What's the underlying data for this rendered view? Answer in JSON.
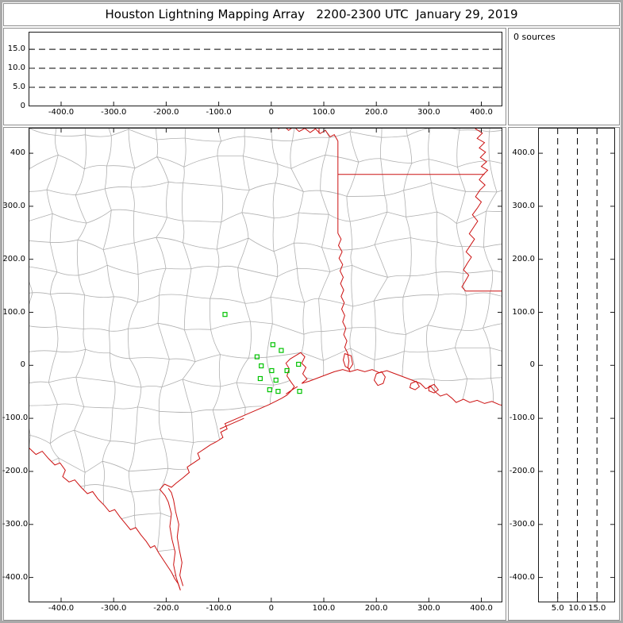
{
  "window": {
    "title": "Houston Lightning Mapping Array   2200-2300 UTC  January 29, 2019"
  },
  "sources_panel": {
    "label": "0 sources"
  },
  "colors": {
    "outer_border": "#a9a9a9",
    "panel_border": "#8f8f8f",
    "plot_frame": "#1a1a1a",
    "county_gray": "#b0b0b0",
    "state_border_red": "#cc1111",
    "station_green": "#00c300",
    "dash_black": "#000000"
  },
  "chart_data": [
    {
      "id": "alt-vs-ew",
      "type": "scatter",
      "title": "altitude vs east-west distance (km)",
      "sources": 0,
      "points": [],
      "xlim": [
        -462,
        440
      ],
      "alt_lim": [
        0,
        19.6
      ],
      "grid_style": "dashed",
      "gridlines_alt_km": [
        5,
        10,
        15
      ],
      "xticks": [
        {
          "v": -400,
          "label": "-400.0"
        },
        {
          "v": -300,
          "label": "-300.0"
        },
        {
          "v": -200,
          "label": "-200.0"
        },
        {
          "v": -100,
          "label": "-100.0"
        },
        {
          "v": 0,
          "label": "0"
        },
        {
          "v": 100,
          "label": "100.0"
        },
        {
          "v": 200,
          "label": "200.0"
        },
        {
          "v": 300,
          "label": "300.0"
        },
        {
          "v": 400,
          "label": "400.0"
        }
      ],
      "yticks": [
        {
          "v": 15,
          "label": "15.0"
        },
        {
          "v": 10,
          "label": "10.0"
        },
        {
          "v": 5,
          "label": "5.0"
        },
        {
          "v": 0,
          "label": "0"
        }
      ]
    },
    {
      "id": "plan-view",
      "type": "scatter",
      "title": "plan view map (km east-west vs km north-south)",
      "sources": 0,
      "points": [],
      "xlim": [
        -462,
        440
      ],
      "ylim": [
        -447,
        448
      ],
      "xticks": [
        {
          "v": -400,
          "label": "-400.0"
        },
        {
          "v": -300,
          "label": "-300.0"
        },
        {
          "v": -200,
          "label": "-200.0"
        },
        {
          "v": -100,
          "label": "-100.0"
        },
        {
          "v": 0,
          "label": "0"
        },
        {
          "v": 100,
          "label": "100.0"
        },
        {
          "v": 200,
          "label": "200.0"
        },
        {
          "v": 300,
          "label": "300.0"
        },
        {
          "v": 400,
          "label": "400.0"
        }
      ],
      "yticks": [
        {
          "v": 400,
          "label": "400"
        },
        {
          "v": 300,
          "label": "300.0"
        },
        {
          "v": 200,
          "label": "200.0"
        },
        {
          "v": 100,
          "label": "100.0"
        },
        {
          "v": 0,
          "label": "0"
        },
        {
          "v": -100,
          "label": "-100.0"
        },
        {
          "v": -200,
          "label": "-200.0"
        },
        {
          "v": -300,
          "label": "-300.0"
        },
        {
          "v": -400,
          "label": "-400.0"
        }
      ],
      "stations_km": [
        [
          -88,
          96
        ],
        [
          3,
          39
        ],
        [
          19,
          28
        ],
        [
          -27,
          16
        ],
        [
          -19,
          -1
        ],
        [
          1,
          -10
        ],
        [
          30,
          -10
        ],
        [
          -21,
          -25
        ],
        [
          9,
          -28
        ],
        [
          -3,
          -46
        ],
        [
          13,
          -49
        ],
        [
          52,
          2
        ],
        [
          54,
          -49
        ]
      ],
      "county_grid": {
        "seed": 7,
        "step_km": 52,
        "jitter_km": 14,
        "x0": -520,
        "y0": -500,
        "cols": 20,
        "rows": 20
      },
      "borders_km": {
        "red_river": [
          [
            5,
            455
          ],
          [
            14,
            446
          ],
          [
            24,
            451
          ],
          [
            33,
            443
          ],
          [
            43,
            450
          ],
          [
            53,
            441
          ],
          [
            64,
            447
          ],
          [
            74,
            439
          ],
          [
            84,
            446
          ],
          [
            93,
            437
          ],
          [
            103,
            443
          ],
          [
            112,
            431
          ],
          [
            120,
            435
          ],
          [
            127,
            423
          ]
        ],
        "ok_ar_line": [
          [
            91,
            455
          ],
          [
            91,
            437
          ]
        ],
        "tx_east_line": [
          [
            127,
            423
          ],
          [
            127,
            249
          ]
        ],
        "ar_la_line": [
          [
            127,
            360
          ],
          [
            406,
            360
          ]
        ],
        "mississippi_river": [
          [
            400,
            455
          ],
          [
            389,
            446
          ],
          [
            402,
            438
          ],
          [
            392,
            428
          ],
          [
            406,
            420
          ],
          [
            396,
            410
          ],
          [
            408,
            402
          ],
          [
            398,
            392
          ],
          [
            410,
            384
          ],
          [
            400,
            375
          ],
          [
            412,
            368
          ],
          [
            404,
            360
          ],
          [
            396,
            350
          ],
          [
            407,
            340
          ],
          [
            397,
            330
          ],
          [
            389,
            318
          ],
          [
            400,
            308
          ],
          [
            392,
            296
          ],
          [
            383,
            284
          ],
          [
            393,
            272
          ],
          [
            385,
            260
          ],
          [
            377,
            248
          ],
          [
            387,
            238
          ],
          [
            379,
            226
          ],
          [
            371,
            214
          ],
          [
            381,
            204
          ],
          [
            373,
            192
          ],
          [
            366,
            180
          ],
          [
            376,
            170
          ],
          [
            369,
            158
          ],
          [
            363,
            148
          ],
          [
            370,
            140
          ]
        ],
        "la_ms_line": [
          [
            370,
            140
          ],
          [
            442,
            140
          ]
        ],
        "sabine_river": [
          [
            127,
            249
          ],
          [
            133,
            238
          ],
          [
            128,
            226
          ],
          [
            135,
            214
          ],
          [
            129,
            202
          ],
          [
            136,
            190
          ],
          [
            131,
            178
          ],
          [
            137,
            166
          ],
          [
            132,
            154
          ],
          [
            138,
            142
          ],
          [
            133,
            130
          ],
          [
            139,
            118
          ],
          [
            134,
            106
          ],
          [
            140,
            94
          ],
          [
            136,
            82
          ],
          [
            142,
            70
          ],
          [
            138,
            58
          ],
          [
            144,
            46
          ],
          [
            140,
            34
          ],
          [
            145,
            24
          ],
          [
            148,
            8
          ],
          [
            146,
            -4
          ],
          [
            150,
            -12
          ]
        ],
        "rio_grande": [
          [
            -462,
            -155
          ],
          [
            -448,
            -168
          ],
          [
            -436,
            -162
          ],
          [
            -424,
            -176
          ],
          [
            -412,
            -188
          ],
          [
            -402,
            -184
          ],
          [
            -392,
            -198
          ],
          [
            -397,
            -210
          ],
          [
            -385,
            -220
          ],
          [
            -374,
            -216
          ],
          [
            -362,
            -230
          ],
          [
            -350,
            -242
          ],
          [
            -340,
            -238
          ],
          [
            -330,
            -252
          ],
          [
            -318,
            -264
          ],
          [
            -308,
            -276
          ],
          [
            -298,
            -272
          ],
          [
            -288,
            -286
          ],
          [
            -278,
            -298
          ],
          [
            -268,
            -310
          ],
          [
            -258,
            -306
          ],
          [
            -248,
            -320
          ],
          [
            -238,
            -332
          ],
          [
            -230,
            -344
          ],
          [
            -222,
            -340
          ],
          [
            -214,
            -354
          ],
          [
            -206,
            -366
          ],
          [
            -198,
            -378
          ],
          [
            -190,
            -390
          ],
          [
            -184,
            -402
          ],
          [
            -177,
            -412
          ],
          [
            -173,
            -424
          ]
        ],
        "gulf_coast": [
          [
            -173,
            -424
          ],
          [
            -181,
            -400
          ],
          [
            -186,
            -376
          ],
          [
            -183,
            -352
          ],
          [
            -189,
            -328
          ],
          [
            -193,
            -304
          ],
          [
            -190,
            -280
          ],
          [
            -196,
            -258
          ],
          [
            -202,
            -246
          ],
          [
            -212,
            -234
          ],
          [
            -203,
            -224
          ],
          [
            -190,
            -230
          ],
          [
            -181,
            -222
          ],
          [
            -168,
            -212
          ],
          [
            -156,
            -202
          ],
          [
            -160,
            -192
          ],
          [
            -148,
            -184
          ],
          [
            -136,
            -176
          ],
          [
            -140,
            -166
          ],
          [
            -128,
            -158
          ],
          [
            -116,
            -150
          ],
          [
            -104,
            -144
          ],
          [
            -92,
            -136
          ],
          [
            -96,
            -126
          ],
          [
            -84,
            -120
          ],
          [
            -88,
            -110
          ],
          [
            -74,
            -104
          ],
          [
            -60,
            -98
          ],
          [
            -46,
            -92
          ],
          [
            -32,
            -86
          ],
          [
            -18,
            -80
          ],
          [
            -4,
            -74
          ],
          [
            8,
            -68
          ],
          [
            20,
            -62
          ],
          [
            30,
            -56
          ],
          [
            38,
            -48
          ],
          [
            44,
            -40
          ],
          [
            38,
            -32
          ],
          [
            30,
            -20
          ],
          [
            34,
            -6
          ],
          [
            28,
            4
          ],
          [
            36,
            12
          ],
          [
            46,
            18
          ],
          [
            56,
            24
          ],
          [
            64,
            16
          ],
          [
            58,
            4
          ],
          [
            66,
            -4
          ],
          [
            60,
            -16
          ],
          [
            68,
            -26
          ],
          [
            58,
            -34
          ],
          [
            72,
            -30
          ],
          [
            88,
            -24
          ],
          [
            104,
            -18
          ],
          [
            120,
            -12
          ],
          [
            136,
            -8
          ],
          [
            150,
            -12
          ],
          [
            164,
            -8
          ],
          [
            178,
            -12
          ],
          [
            192,
            -8
          ],
          [
            206,
            -14
          ],
          [
            220,
            -10
          ],
          [
            236,
            -16
          ],
          [
            252,
            -22
          ],
          [
            268,
            -28
          ],
          [
            284,
            -34
          ],
          [
            294,
            -44
          ],
          [
            304,
            -40
          ],
          [
            312,
            -50
          ],
          [
            322,
            -58
          ],
          [
            334,
            -54
          ],
          [
            344,
            -62
          ],
          [
            352,
            -70
          ],
          [
            366,
            -64
          ],
          [
            378,
            -70
          ],
          [
            392,
            -66
          ],
          [
            406,
            -72
          ],
          [
            420,
            -68
          ],
          [
            434,
            -74
          ],
          [
            442,
            -76
          ]
        ]
      },
      "islands_km": {
        "padre_island": [
          [
            -168,
            -416
          ],
          [
            -174,
            -396
          ],
          [
            -170,
            -372
          ],
          [
            -175,
            -348
          ],
          [
            -179,
            -324
          ],
          [
            -176,
            -300
          ],
          [
            -182,
            -276
          ],
          [
            -186,
            -254
          ],
          [
            -190,
            -240
          ],
          [
            -196,
            -232
          ]
        ],
        "matagorda_peninsula": [
          [
            -98,
            -120
          ],
          [
            -82,
            -113
          ],
          [
            -66,
            -106
          ],
          [
            -52,
            -100
          ]
        ],
        "galveston_island": [
          [
            28,
            -54
          ],
          [
            40,
            -46
          ],
          [
            50,
            -40
          ]
        ]
      },
      "lakes_km": {
        "sabine_lake": [
          [
            140,
            22
          ],
          [
            152,
            18
          ],
          [
            155,
            2
          ],
          [
            149,
            -7
          ],
          [
            141,
            -2
          ],
          [
            137,
            10
          ],
          [
            140,
            22
          ]
        ],
        "calcasieu_lake": [
          [
            200,
            -16
          ],
          [
            210,
            -12
          ],
          [
            217,
            -22
          ],
          [
            213,
            -34
          ],
          [
            203,
            -38
          ],
          [
            196,
            -28
          ],
          [
            200,
            -16
          ]
        ],
        "grand_lake": [
          [
            266,
            -34
          ],
          [
            276,
            -30
          ],
          [
            282,
            -40
          ],
          [
            274,
            -46
          ],
          [
            264,
            -42
          ],
          [
            266,
            -34
          ]
        ],
        "white_lake": [
          [
            300,
            -40
          ],
          [
            310,
            -36
          ],
          [
            318,
            -46
          ],
          [
            310,
            -52
          ],
          [
            300,
            -48
          ],
          [
            300,
            -40
          ]
        ]
      }
    },
    {
      "id": "alt-vs-ns",
      "type": "scatter",
      "title": "altitude vs north-south distance (km)",
      "sources": 0,
      "points": [],
      "ylim": [
        -447,
        448
      ],
      "alt_lim": [
        0,
        19.6
      ],
      "grid_style": "dashed",
      "gridlines_alt_km": [
        5,
        10,
        15
      ],
      "xticks": [
        {
          "v": 5,
          "label": "5.0"
        },
        {
          "v": 10,
          "label": "10.0"
        },
        {
          "v": 15,
          "label": "15.0"
        }
      ],
      "yticks": [
        {
          "v": 400,
          "label": "400.0"
        },
        {
          "v": 300,
          "label": "300.0"
        },
        {
          "v": 200,
          "label": "200.0"
        },
        {
          "v": 100,
          "label": "100.0"
        },
        {
          "v": 0,
          "label": "0"
        },
        {
          "v": -100,
          "label": "-100.0"
        },
        {
          "v": -200,
          "label": "-200.0"
        },
        {
          "v": -300,
          "label": "-300.0"
        },
        {
          "v": -400,
          "label": "-400.0"
        }
      ]
    }
  ]
}
